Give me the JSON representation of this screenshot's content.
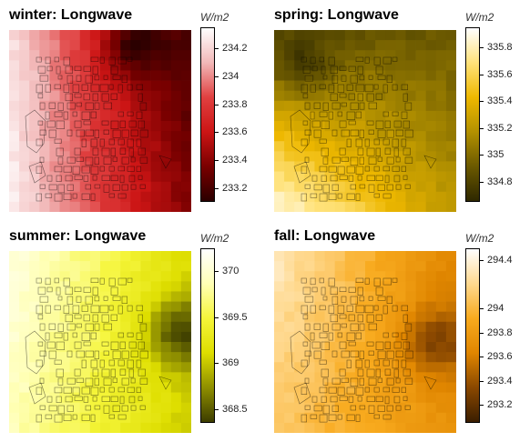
{
  "panels": [
    {
      "title": "winter: Longwave",
      "unit": "W/m2",
      "range": [
        233.1,
        234.35
      ],
      "ticks": [
        "234.2",
        "234",
        "233.8",
        "233.6",
        "233.4",
        "233.2"
      ],
      "colors": [
        "#2b0000",
        "#7a0000",
        "#cc1515",
        "#e04040",
        "#f2b8b8",
        "#ffffff"
      ],
      "field": {
        "corner_values": [
          234.25,
          233.15,
          234.3,
          233.35
        ],
        "hotspot_value": 233.1
      }
    },
    {
      "title": "spring: Longwave",
      "unit": "W/m2",
      "range": [
        334.65,
        335.95
      ],
      "ticks": [
        "335.8",
        "335.6",
        "335.4",
        "335.2",
        "335",
        "334.8"
      ],
      "colors": [
        "#2e2800",
        "#6b5900",
        "#b39100",
        "#eeb800",
        "#ffe27a",
        "#ffffff"
      ],
      "field": {
        "corner_values": [
          334.85,
          334.9,
          335.9,
          335.2
        ],
        "hotspot_value": 334.75
      }
    },
    {
      "title": "summer: Longwave",
      "unit": "W/m2",
      "range": [
        368.35,
        370.25
      ],
      "ticks": [
        "370",
        "369.5",
        "369",
        "368.5"
      ],
      "colors": [
        "#3d3d00",
        "#8f8f00",
        "#dede00",
        "#f5f53a",
        "#ffffb5",
        "#ffffff"
      ],
      "field": {
        "corner_values": [
          370.1,
          369.1,
          369.9,
          369.0
        ],
        "hotspot_value": 368.4
      }
    },
    {
      "title": "fall: Longwave",
      "unit": "W/m2",
      "range": [
        293.05,
        294.5
      ],
      "ticks": [
        "294.4",
        "294",
        "293.8",
        "293.6",
        "293.4",
        "293.2"
      ],
      "colors": [
        "#3b1e00",
        "#8a4800",
        "#e08600",
        "#f8aa1e",
        "#ffd98f",
        "#ffffff"
      ],
      "field": {
        "corner_values": [
          294.35,
          293.6,
          294.1,
          293.7
        ],
        "hotspot_value": 293.3
      }
    }
  ],
  "chart_data": [
    {
      "type": "heatmap",
      "title": "winter: Longwave",
      "colorbar_label": "W/m2",
      "value_range": [
        233.1,
        234.35
      ]
    },
    {
      "type": "heatmap",
      "title": "spring: Longwave",
      "colorbar_label": "W/m2",
      "value_range": [
        334.65,
        335.95
      ]
    },
    {
      "type": "heatmap",
      "title": "summer: Longwave",
      "colorbar_label": "W/m2",
      "value_range": [
        368.35,
        370.25
      ]
    },
    {
      "type": "heatmap",
      "title": "fall: Longwave",
      "colorbar_label": "W/m2",
      "value_range": [
        293.05,
        294.5
      ]
    }
  ]
}
